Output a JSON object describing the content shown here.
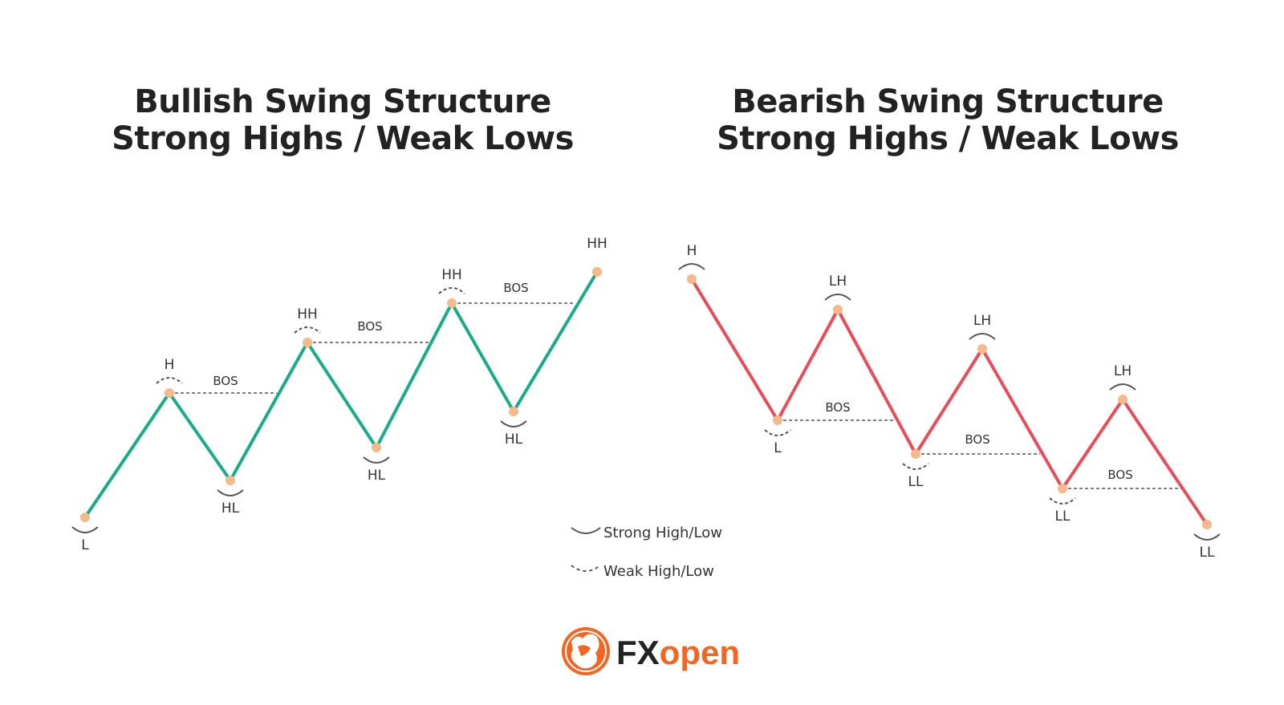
{
  "panels": [
    {
      "title_line1": "Bullish Swing Structure",
      "title_line2": "Strong Highs / Weak Lows",
      "line_color": "#1aab8a",
      "points": [
        {
          "label": "L",
          "strength": "strong"
        },
        {
          "label": "H",
          "strength": "weak"
        },
        {
          "label": "HL",
          "strength": "strong"
        },
        {
          "label": "HH",
          "strength": "weak"
        },
        {
          "label": "HL",
          "strength": "strong"
        },
        {
          "label": "HH",
          "strength": "weak"
        },
        {
          "label": "HL",
          "strength": "strong"
        },
        {
          "label": "HH",
          "strength": "none"
        }
      ],
      "bos_labels": [
        "BOS",
        "BOS",
        "BOS"
      ]
    },
    {
      "title_line1": "Bearish Swing Structure",
      "title_line2": "Strong Highs / Weak Lows",
      "line_color": "#e84d5b",
      "points": [
        {
          "label": "H",
          "strength": "strong"
        },
        {
          "label": "L",
          "strength": "weak"
        },
        {
          "label": "LH",
          "strength": "strong"
        },
        {
          "label": "LL",
          "strength": "weak"
        },
        {
          "label": "LH",
          "strength": "strong"
        },
        {
          "label": "LL",
          "strength": "weak"
        },
        {
          "label": "LH",
          "strength": "strong"
        },
        {
          "label": "LL",
          "strength": "strong"
        }
      ],
      "bos_labels": [
        "BOS",
        "BOS",
        "BOS"
      ]
    }
  ],
  "legend": {
    "strong": "Strong High/Low",
    "weak": "Weak High/Low"
  },
  "logo": {
    "text_fx": "FX",
    "text_open": "open",
    "fx_color": "#222222",
    "open_color": "#f26522"
  },
  "colors": {
    "point_marker": "#f5b98a",
    "bos_line": "#555555",
    "arc": "#555555"
  }
}
